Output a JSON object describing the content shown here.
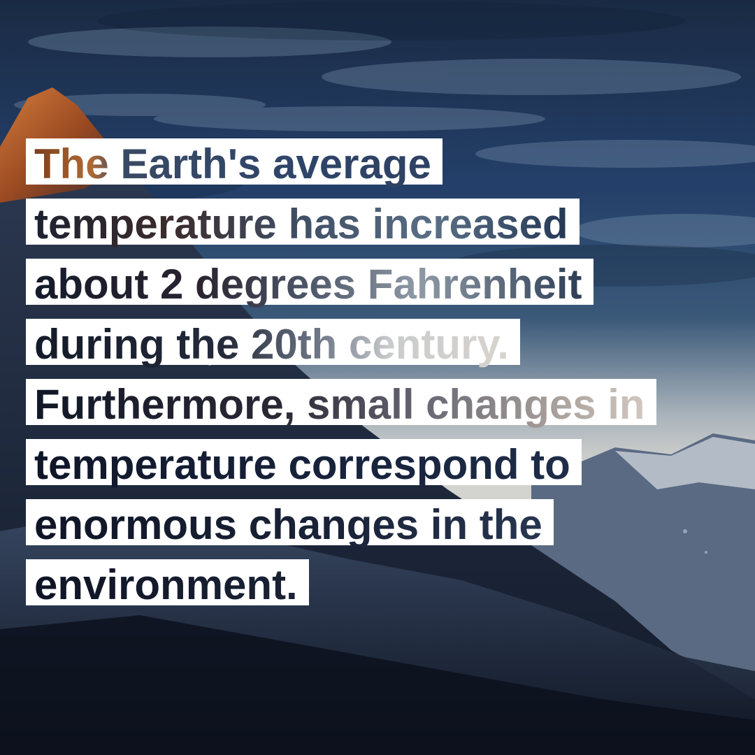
{
  "quote": {
    "lines": [
      "The Earth's average",
      "temperature has increased",
      "about 2 degrees Fahrenheit",
      "during the 20th century.",
      "Furthermore, small changes in",
      "temperature correspond to",
      "enormous changes in the",
      "environment."
    ]
  },
  "colors": {
    "text_box": "#ffffff",
    "sky_dark": "#1b2c44",
    "sky_light": "#c7ccd0",
    "mountain_shadow": "#141c2b",
    "peak_sunlit": "#c0632b"
  },
  "background": {
    "scene": "mountain peak under cloudy sky at dusk"
  }
}
